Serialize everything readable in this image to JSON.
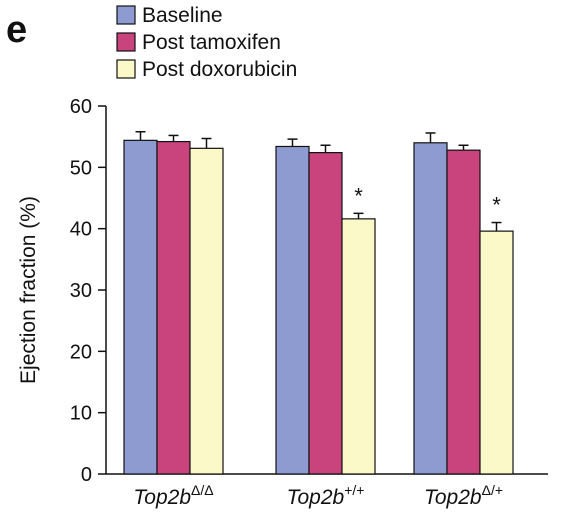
{
  "panel_label": "e",
  "chart_data": {
    "type": "bar",
    "title": "",
    "xlabel": "",
    "ylabel": "Ejection fraction (%)",
    "ylim": [
      0,
      60
    ],
    "yticks": [
      0,
      10,
      20,
      30,
      40,
      50,
      60
    ],
    "grid": false,
    "legend_position": "top-left",
    "categories": [
      {
        "base": "Top2b",
        "sup": "Δ/Δ"
      },
      {
        "base": "Top2b",
        "sup": "+/+"
      },
      {
        "base": "Top2b",
        "sup": "Δ/+"
      }
    ],
    "series": [
      {
        "name": "Baseline",
        "color": "#8e9bd0",
        "values": [
          54.4,
          53.4,
          54.0
        ],
        "errors": [
          1.4,
          1.2,
          1.6
        ]
      },
      {
        "name": "Post tamoxifen",
        "color": "#c9437c",
        "values": [
          54.2,
          52.4,
          52.8
        ],
        "errors": [
          1.0,
          1.2,
          0.8
        ]
      },
      {
        "name": "Post doxorubicin",
        "color": "#fbf9c8",
        "values": [
          53.1,
          41.6,
          39.6
        ],
        "errors": [
          1.6,
          0.9,
          1.4
        ]
      }
    ],
    "annotations": [
      {
        "category_index": 1,
        "series_index": 2,
        "text": "*"
      },
      {
        "category_index": 2,
        "series_index": 2,
        "text": "*"
      }
    ]
  }
}
